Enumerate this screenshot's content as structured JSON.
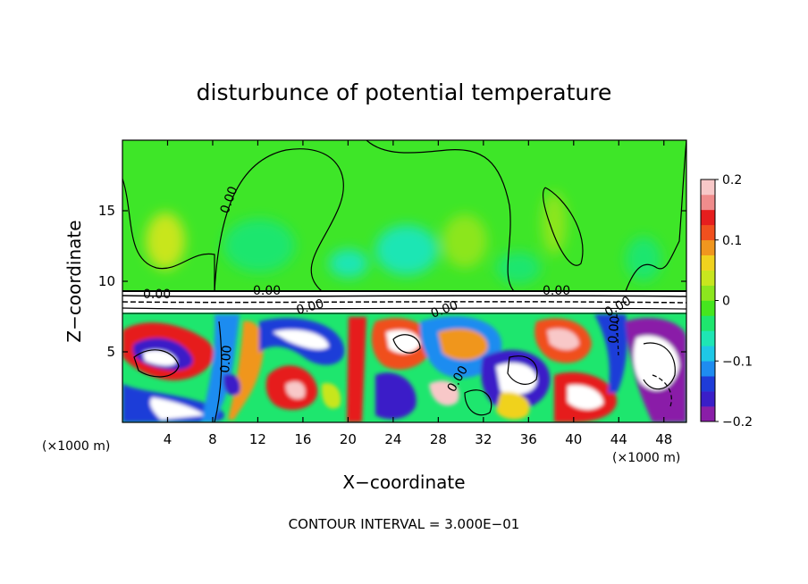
{
  "chart_data": {
    "type": "heatmap",
    "title": "disturbunce of potential temperature",
    "xlabel": "X−coordinate",
    "ylabel": "Z−coordinate",
    "x_unit": "(×1000 m)",
    "z_unit": "(×1000 m)",
    "xlim": [
      0,
      50
    ],
    "ylim": [
      0,
      20
    ],
    "x_ticks": [
      "4",
      "8",
      "12",
      "16",
      "20",
      "24",
      "28",
      "32",
      "36",
      "40",
      "44",
      "48"
    ],
    "x_tick_values": [
      4,
      8,
      12,
      16,
      20,
      24,
      28,
      32,
      36,
      40,
      44,
      48
    ],
    "y_ticks": [
      "5",
      "10",
      "15"
    ],
    "y_tick_values": [
      5,
      10,
      15
    ],
    "colorbar": {
      "range": [
        -0.2,
        0.2
      ],
      "tick_labels": [
        "0.2",
        "0.1",
        "0",
        "−0.1",
        "−0.2"
      ],
      "tick_values": [
        0.2,
        0.1,
        0,
        -0.1,
        -0.2
      ],
      "colors": [
        "#8a1ea8",
        "#3a1ec8",
        "#1e3cd8",
        "#1e8cf0",
        "#1ec8e6",
        "#1ee6b4",
        "#1ee66e",
        "#46e61e",
        "#8ce61e",
        "#c8e61e",
        "#f0d21e",
        "#f0961e",
        "#f0501e",
        "#e61e1e",
        "#f08c8c",
        "#f8c8c8"
      ]
    },
    "contour_labels": [
      "0.00",
      "0.00",
      "0.00",
      "0.00",
      "0.00",
      "0.00",
      "0.00",
      "0.00",
      "0.00",
      "0.00"
    ],
    "annotation": "CONTOUR INTERVAL = 3.000E−01"
  }
}
